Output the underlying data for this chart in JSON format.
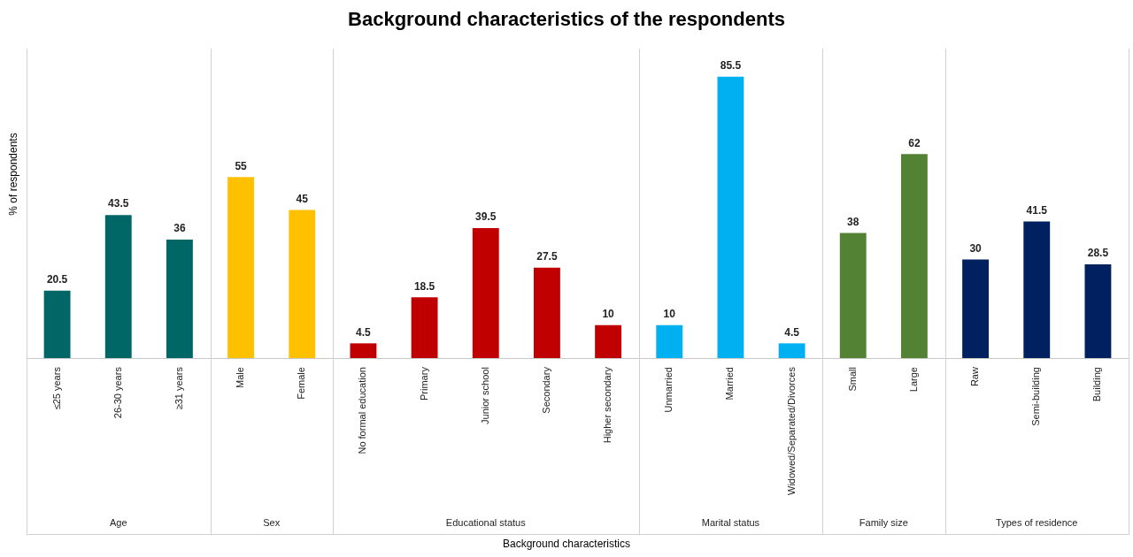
{
  "chart_data": {
    "type": "bar",
    "title": "Background characteristics of the respondents",
    "xlabel": "Background characteristics",
    "ylabel": "% of respondents",
    "categories": [
      "≤25 years",
      "26-30 years",
      "≥31 years",
      "Male",
      "Female",
      "No formal education",
      "Primary",
      "Junior school",
      "Secondary",
      "Higher secondary",
      "Unmarried",
      "Married",
      "Widowed/Separated/Divorces",
      "Small",
      "Large",
      "Raw",
      "Semi-building",
      "Building"
    ],
    "series": [
      {
        "color": "#006666",
        "values": [
          20.5,
          43.5,
          36,
          null,
          null,
          null,
          null,
          null,
          null,
          null,
          null,
          null,
          null,
          null,
          null,
          null,
          null,
          null
        ]
      },
      {
        "color": "#ffc000",
        "values": [
          null,
          null,
          null,
          55,
          45,
          null,
          null,
          null,
          null,
          null,
          null,
          null,
          null,
          null,
          null,
          null,
          null,
          null
        ]
      },
      {
        "color": "#c00000",
        "values": [
          null,
          null,
          null,
          null,
          null,
          4.5,
          18.5,
          39.5,
          27.5,
          10,
          null,
          null,
          null,
          null,
          null,
          null,
          null,
          null
        ]
      },
      {
        "color": "#00b0f0",
        "values": [
          null,
          null,
          null,
          null,
          null,
          null,
          null,
          null,
          null,
          null,
          10,
          85.5,
          4.5,
          null,
          null,
          null,
          null,
          null
        ]
      },
      {
        "color": "#548235",
        "values": [
          null,
          null,
          null,
          null,
          null,
          null,
          null,
          null,
          null,
          null,
          null,
          null,
          null,
          38,
          62,
          null,
          null,
          null
        ]
      },
      {
        "color": "#002060",
        "values": [
          null,
          null,
          null,
          null,
          null,
          null,
          null,
          null,
          null,
          null,
          null,
          null,
          null,
          null,
          null,
          30,
          41.5,
          28.5
        ]
      }
    ],
    "annotations": [
      "Age",
      "Sex",
      "Educational status",
      "Marital status",
      "Family size",
      "Types of residence"
    ],
    "data_labels": true,
    "grid": false,
    "legend": false,
    "tick_labels": "x"
  }
}
